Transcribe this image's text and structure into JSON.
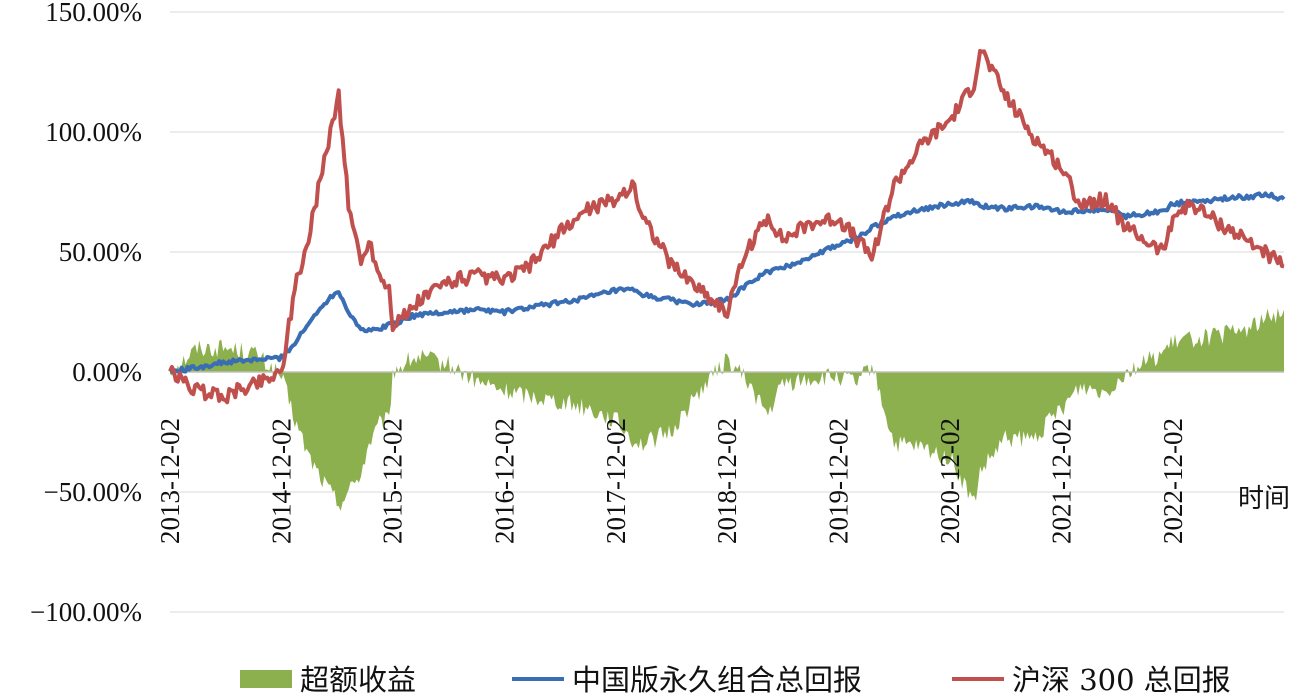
{
  "chart_data": {
    "type": "line",
    "xlabel": "时间",
    "ylabel": "",
    "ylim": [
      -100,
      150
    ],
    "y_ticks": [
      "150.00%",
      "100.00%",
      "50.00%",
      "0.00%",
      "−50.00%",
      "−100.00%"
    ],
    "y_tick_values": [
      150,
      100,
      50,
      0,
      -50,
      -100
    ],
    "x_tick_labels": [
      "2013-12-02",
      "2014-12-02",
      "2015-12-02",
      "2016-12-02",
      "2017-12-02",
      "2018-12-02",
      "2019-12-02",
      "2020-12-02",
      "2021-12-02",
      "2022-12-02"
    ],
    "x_range": [
      "2013-12-02",
      "2023-12-01"
    ],
    "grid": "horizontal",
    "legend_position": "bottom",
    "x": [
      "2013-12-02",
      "2014-03-01",
      "2014-06-01",
      "2014-09-01",
      "2014-12-02",
      "2015-01-15",
      "2015-03-01",
      "2015-04-15",
      "2015-06-08",
      "2015-07-10",
      "2015-08-20",
      "2015-09-15",
      "2015-10-20",
      "2015-11-20",
      "2015-12-02",
      "2016-01-28",
      "2016-03-01",
      "2016-06-01",
      "2016-09-01",
      "2016-12-02",
      "2017-03-01",
      "2017-06-01",
      "2017-09-01",
      "2017-12-02",
      "2018-01-25",
      "2018-03-01",
      "2018-06-01",
      "2018-09-01",
      "2018-12-02",
      "2019-02-01",
      "2019-04-15",
      "2019-06-01",
      "2019-09-01",
      "2019-12-02",
      "2020-02-01",
      "2020-03-20",
      "2020-06-01",
      "2020-09-01",
      "2020-12-02",
      "2021-02-18",
      "2021-03-10",
      "2021-06-01",
      "2021-09-01",
      "2021-12-02",
      "2022-02-01",
      "2022-04-26",
      "2022-07-01",
      "2022-10-31",
      "2022-12-02",
      "2023-02-01",
      "2023-05-01",
      "2023-08-01",
      "2023-10-01",
      "2023-12-01"
    ],
    "series": [
      {
        "name": "超额收益",
        "style": "area",
        "color": "#8db04e",
        "values": [
          0,
          10,
          10,
          8,
          -2,
          -20,
          -35,
          -45,
          -55,
          -50,
          -42,
          -30,
          -22,
          -20,
          0,
          5,
          6,
          3,
          -4,
          -8,
          -10,
          -12,
          -15,
          -20,
          -28,
          -30,
          -25,
          -8,
          5,
          -3,
          -18,
          -5,
          -3,
          -2,
          -5,
          3,
          -30,
          -32,
          -36,
          -55,
          -42,
          -28,
          -28,
          -15,
          -6,
          -8,
          0,
          8,
          12,
          14,
          15,
          18,
          22,
          26
        ]
      },
      {
        "name": "中国版永久组合总回报",
        "style": "line",
        "color": "#3a6eb4",
        "values": [
          0,
          2,
          4,
          5,
          6,
          12,
          20,
          28,
          34,
          25,
          18,
          17,
          18,
          20,
          20,
          23,
          24,
          25,
          26,
          25,
          27,
          29,
          31,
          34,
          34,
          32,
          30,
          28,
          30,
          36,
          42,
          43,
          48,
          53,
          56,
          60,
          65,
          68,
          70,
          71,
          69,
          68,
          69,
          67,
          67,
          68,
          65,
          67,
          70,
          71,
          72,
          73,
          74,
          72
        ]
      },
      {
        "name": "沪深300 总回报",
        "style": "line",
        "color": "#c0504d",
        "values": [
          0,
          -8,
          -10,
          -5,
          0,
          35,
          55,
          85,
          115,
          70,
          45,
          55,
          40,
          35,
          20,
          25,
          30,
          38,
          40,
          38,
          45,
          58,
          68,
          72,
          78,
          65,
          45,
          35,
          25,
          50,
          65,
          55,
          62,
          64,
          55,
          48,
          78,
          95,
          105,
          120,
          135,
          115,
          98,
          85,
          70,
          72,
          60,
          50,
          65,
          70,
          62,
          55,
          50,
          44
        ]
      }
    ]
  },
  "legend": [
    {
      "label": "超额收益",
      "swatch": "rect",
      "color": "#8db04e"
    },
    {
      "label": "中国版永久组合总回报",
      "swatch": "line",
      "color": "#3a6eb4"
    },
    {
      "label": "沪深 300 总回报",
      "swatch": "line",
      "color": "#c0504d"
    }
  ]
}
